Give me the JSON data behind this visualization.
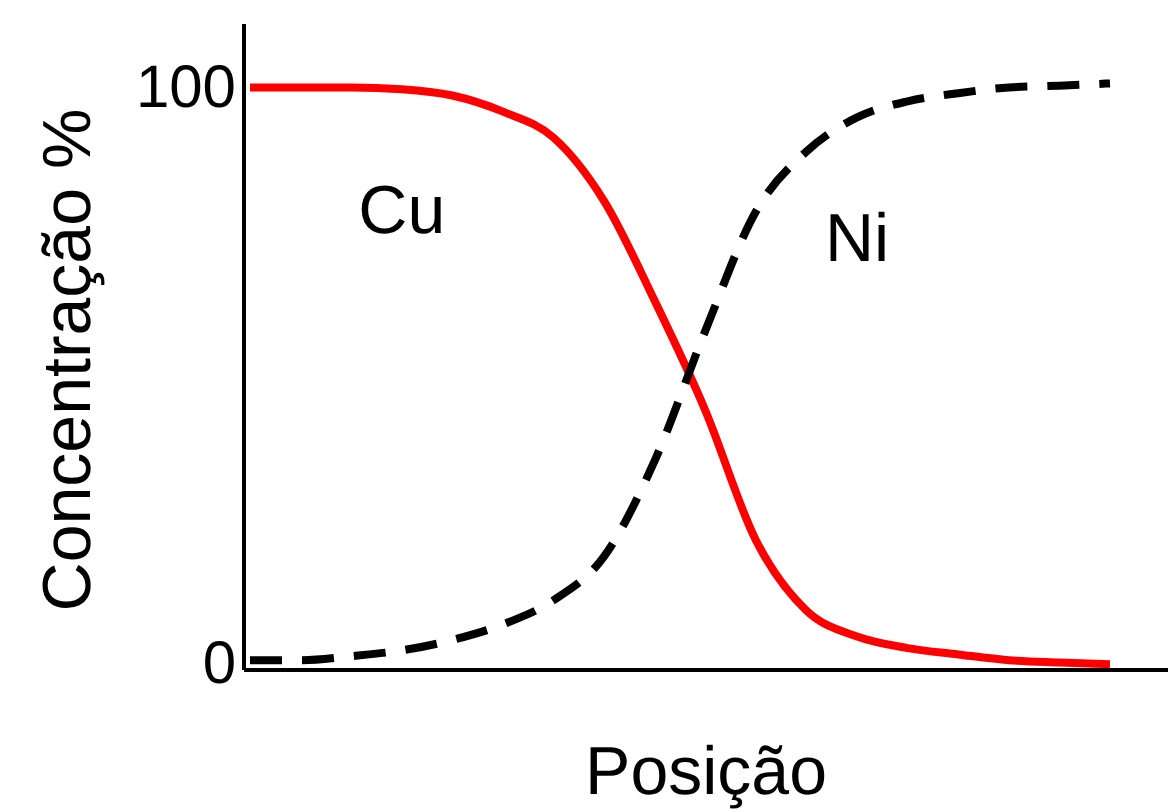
{
  "chart_data": {
    "type": "line",
    "xlabel": "Posição",
    "ylabel": "Concentração %",
    "categories": [
      null,
      null,
      null,
      null,
      null,
      null,
      null,
      null,
      null,
      null,
      null,
      null,
      null,
      null,
      null,
      null,
      null,
      null
    ],
    "ylim": [
      -1,
      111
    ],
    "yticks": [
      0,
      100
    ],
    "grid": false,
    "legend": false,
    "marker": "none",
    "tick_labels": "y",
    "series": [
      {
        "name": "Cu",
        "color": "#ff0000",
        "line_style": "solid",
        "values": [
          100,
          100,
          100,
          99.7,
          98.6,
          95.8,
          91.3,
          80.3,
          63,
          44,
          21.5,
          9.3,
          4.8,
          2.8,
          1.7,
          0.7,
          0.3,
          0
        ]
      },
      {
        "name": "Ni",
        "color": "#000000",
        "line_style": "dashed",
        "values": [
          0.7,
          0.7,
          1.4,
          2.4,
          4.2,
          6.9,
          11.1,
          18.7,
          35.3,
          57.8,
          78.5,
          88.9,
          94.8,
          97.6,
          99,
          100,
          100.3,
          100.7
        ]
      }
    ]
  }
}
